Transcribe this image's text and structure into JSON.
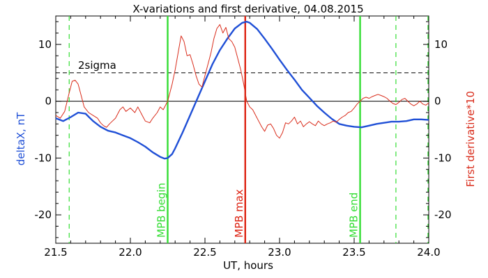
{
  "chart_data": {
    "type": "line",
    "title": "X-variations and first derivative, 04.08.2015",
    "xlabel": "UT, hours",
    "ylabel": "deltaX, nT",
    "ylabel_right": "First derivative*10",
    "xlim": [
      21.5,
      24.0
    ],
    "ylim": [
      -25,
      15
    ],
    "xticks": [
      21.5,
      22.0,
      22.5,
      23.0,
      23.5,
      24.0
    ],
    "xtick_labels": [
      "21.5",
      "22.0",
      "22.5",
      "23.0",
      "23.5",
      "24.0"
    ],
    "yticks": [
      -20,
      -10,
      0,
      10
    ],
    "ytick_labels": [
      "-20",
      "-10",
      "0",
      "10"
    ],
    "colors": {
      "deltaX": "#1f4fd6",
      "derivative": "#d92b1a",
      "mpb": "#33dd33",
      "mpb_max": "#dd2211",
      "axes": "#000000"
    },
    "series": [
      {
        "key": "deltaX",
        "axis": "left",
        "x": [
          21.5,
          21.55,
          21.6,
          21.65,
          21.7,
          21.75,
          21.8,
          21.85,
          21.9,
          21.95,
          22.0,
          22.05,
          22.1,
          22.15,
          22.2,
          22.23,
          22.25,
          22.28,
          22.3,
          22.35,
          22.4,
          22.45,
          22.5,
          22.55,
          22.6,
          22.65,
          22.7,
          22.75,
          22.78,
          22.8,
          22.85,
          22.9,
          22.95,
          23.0,
          23.05,
          23.1,
          23.15,
          23.2,
          23.25,
          23.3,
          23.35,
          23.4,
          23.45,
          23.5,
          23.55,
          23.6,
          23.65,
          23.7,
          23.75,
          23.8,
          23.85,
          23.9,
          23.95,
          24.0
        ],
        "values": [
          -3,
          -3.5,
          -2.8,
          -2.0,
          -2.2,
          -3.5,
          -4.5,
          -5.2,
          -5.5,
          -6.0,
          -6.5,
          -7.2,
          -8.0,
          -9.0,
          -9.8,
          -10.1,
          -10.0,
          -9.3,
          -8.3,
          -5.5,
          -2.5,
          0.5,
          3.5,
          6.5,
          9.0,
          11.0,
          12.8,
          13.8,
          14.0,
          13.8,
          12.7,
          11.0,
          9.2,
          7.3,
          5.5,
          3.8,
          2.0,
          0.6,
          -0.8,
          -2.0,
          -3.1,
          -4.0,
          -4.3,
          -4.5,
          -4.6,
          -4.3,
          -4.0,
          -3.8,
          -3.6,
          -3.6,
          -3.5,
          -3.2,
          -3.2,
          -3.3
        ]
      },
      {
        "key": "derivative",
        "axis": "right",
        "x": [
          21.5,
          21.53,
          21.56,
          21.59,
          21.61,
          21.63,
          21.65,
          21.67,
          21.69,
          21.72,
          21.75,
          21.78,
          21.8,
          21.82,
          21.84,
          21.86,
          21.88,
          21.9,
          21.93,
          21.95,
          21.97,
          22.0,
          22.03,
          22.05,
          22.08,
          22.1,
          22.13,
          22.15,
          22.18,
          22.2,
          22.22,
          22.25,
          22.28,
          22.3,
          22.32,
          22.34,
          22.36,
          22.38,
          22.4,
          22.42,
          22.44,
          22.46,
          22.48,
          22.5,
          22.52,
          22.54,
          22.56,
          22.58,
          22.6,
          22.62,
          22.64,
          22.66,
          22.68,
          22.7,
          22.72,
          22.74,
          22.76,
          22.78,
          22.8,
          22.82,
          22.84,
          22.86,
          22.88,
          22.9,
          22.92,
          22.94,
          22.96,
          22.98,
          23.0,
          23.02,
          23.04,
          23.06,
          23.08,
          23.1,
          23.12,
          23.14,
          23.16,
          23.18,
          23.2,
          23.22,
          23.24,
          23.26,
          23.28,
          23.3,
          23.32,
          23.34,
          23.36,
          23.38,
          23.4,
          23.42,
          23.44,
          23.46,
          23.48,
          23.5,
          23.52,
          23.54,
          23.56,
          23.58,
          23.6,
          23.62,
          23.64,
          23.66,
          23.68,
          23.7,
          23.72,
          23.74,
          23.76,
          23.78,
          23.8,
          23.82,
          23.84,
          23.86,
          23.88,
          23.9,
          23.92,
          23.94,
          23.96,
          23.98,
          24.0
        ],
        "values": [
          -2.5,
          -3.0,
          -1.8,
          1.5,
          3.5,
          3.7,
          3.0,
          1.0,
          -1.0,
          -2.0,
          -2.5,
          -3.0,
          -3.8,
          -4.3,
          -4.6,
          -4.0,
          -3.5,
          -3.0,
          -1.5,
          -1.0,
          -1.8,
          -1.2,
          -2.0,
          -1.0,
          -2.5,
          -3.5,
          -3.8,
          -3.0,
          -2.0,
          -1.0,
          -1.5,
          0.0,
          3.0,
          5.5,
          8.5,
          11.5,
          10.5,
          8.0,
          8.2,
          6.5,
          4.5,
          3.0,
          2.5,
          4.5,
          6.5,
          8.5,
          11.0,
          12.8,
          13.5,
          12.0,
          13.0,
          11.0,
          10.5,
          9.5,
          7.5,
          5.5,
          3.0,
          0.0,
          -1.0,
          -1.5,
          -2.5,
          -3.5,
          -4.5,
          -5.3,
          -4.2,
          -4.0,
          -4.8,
          -6.0,
          -6.5,
          -5.5,
          -3.8,
          -4.0,
          -3.5,
          -2.8,
          -4.0,
          -3.5,
          -4.5,
          -4.0,
          -3.6,
          -4.0,
          -4.3,
          -3.5,
          -4.0,
          -4.3,
          -4.0,
          -3.8,
          -3.5,
          -3.7,
          -3.2,
          -2.8,
          -2.5,
          -2.0,
          -1.8,
          -1.2,
          -0.5,
          0.0,
          0.5,
          0.7,
          0.5,
          0.8,
          1.0,
          1.2,
          1.0,
          0.8,
          0.5,
          0.0,
          -0.4,
          -0.6,
          -0.2,
          0.3,
          0.5,
          0.0,
          -0.5,
          -0.8,
          -0.5,
          0.0,
          -0.5,
          -0.7,
          -0.3
        ]
      }
    ],
    "reference_lines": [
      {
        "key": "zero",
        "y": 0,
        "style": "solid",
        "color": "#000000"
      },
      {
        "key": "sigma",
        "y": 5,
        "style": "dashed",
        "color": "#000000",
        "label": "2sigma"
      }
    ],
    "vertical_lines": [
      {
        "key": "mpb-begin",
        "x": 22.25,
        "style": "solid",
        "color": "#33dd33",
        "label": "MPB begin"
      },
      {
        "key": "mpb-max",
        "x": 22.77,
        "style": "solid",
        "color": "#dd2211",
        "label": "MPB max"
      },
      {
        "key": "mpb-end",
        "x": 23.54,
        "style": "solid",
        "color": "#33dd33",
        "label": "MPB end"
      },
      {
        "key": "mpb-dashed-1",
        "x": 21.59,
        "style": "dashed",
        "color": "#33dd33"
      },
      {
        "key": "mpb-dashed-2",
        "x": 23.78,
        "style": "dashed",
        "color": "#33dd33"
      },
      {
        "key": "mpb-dashed-3",
        "x": 23.995,
        "style": "dashed",
        "color": "#33dd33"
      }
    ],
    "grid": false,
    "legend": "none"
  }
}
